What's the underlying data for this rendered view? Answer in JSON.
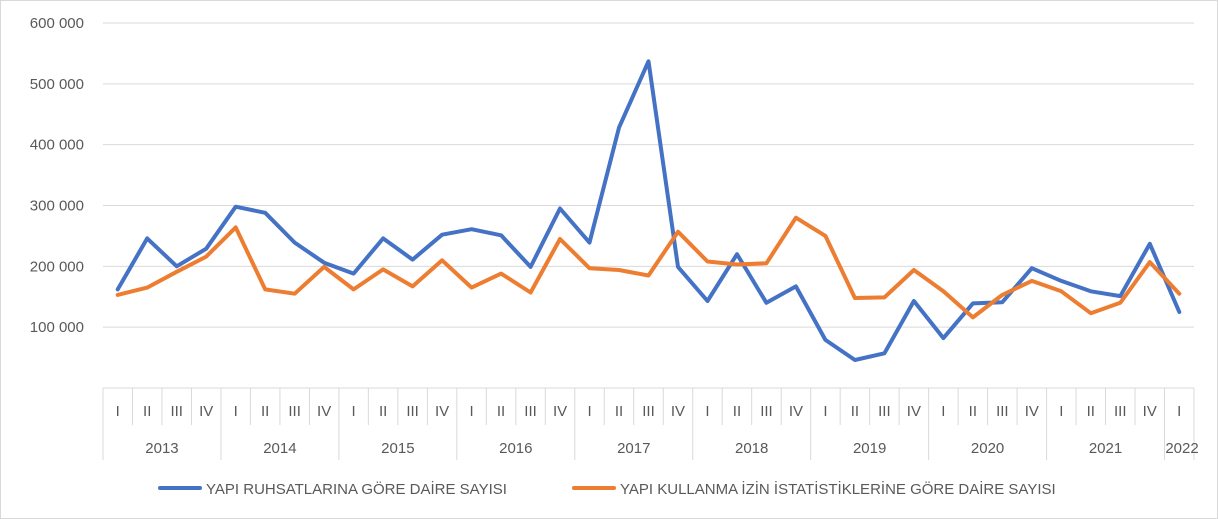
{
  "chart_data": {
    "type": "line",
    "title": "",
    "xlabel": "",
    "ylabel": "",
    "ylim": [
      0,
      600000
    ],
    "y_ticks": [
      100000,
      200000,
      300000,
      400000,
      500000,
      600000
    ],
    "y_tick_labels": [
      "100 000",
      "200 000",
      "300 000",
      "400 000",
      "500 000",
      "600 000"
    ],
    "grid": true,
    "legend_position": "bottom",
    "years": [
      {
        "label": "2013",
        "quarters": [
          "I",
          "II",
          "III",
          "IV"
        ]
      },
      {
        "label": "2014",
        "quarters": [
          "I",
          "II",
          "III",
          "IV"
        ]
      },
      {
        "label": "2015",
        "quarters": [
          "I",
          "II",
          "III",
          "IV"
        ]
      },
      {
        "label": "2016",
        "quarters": [
          "I",
          "II",
          "III",
          "IV"
        ]
      },
      {
        "label": "2017",
        "quarters": [
          "I",
          "II",
          "III",
          "IV"
        ]
      },
      {
        "label": "2018",
        "quarters": [
          "I",
          "II",
          "III",
          "IV"
        ]
      },
      {
        "label": "2019",
        "quarters": [
          "I",
          "II",
          "III",
          "IV"
        ]
      },
      {
        "label": "2020",
        "quarters": [
          "I",
          "II",
          "III",
          "IV"
        ]
      },
      {
        "label": "2021",
        "quarters": [
          "I",
          "II",
          "III",
          "IV"
        ]
      },
      {
        "label": "2022",
        "quarters": [
          "I"
        ]
      }
    ],
    "series": [
      {
        "name": "YAPI RUHSATLARINA GÖRE DAİRE SAYISI",
        "color": "#4472c4",
        "values": [
          162000,
          246000,
          200000,
          229000,
          298000,
          288000,
          239000,
          206000,
          188000,
          246000,
          211000,
          252000,
          261000,
          251000,
          199000,
          295000,
          239000,
          428000,
          537000,
          199000,
          143000,
          220000,
          140000,
          167000,
          79000,
          46000,
          57000,
          143000,
          82000,
          139000,
          141000,
          197000,
          176000,
          159000,
          151000,
          237000,
          125000
        ]
      },
      {
        "name": "YAPI KULLANMA İZİN İSTATİSTİKLERİNE GÖRE DAİRE SAYISI",
        "color": "#ed7d31",
        "values": [
          153000,
          165000,
          191000,
          216000,
          264000,
          162000,
          155000,
          199000,
          162000,
          195000,
          167000,
          210000,
          165000,
          188000,
          157000,
          245000,
          197000,
          194000,
          185000,
          257000,
          208000,
          203000,
          205000,
          280000,
          250000,
          148000,
          149000,
          194000,
          159000,
          116000,
          153000,
          176000,
          159000,
          123000,
          140000,
          207000,
          155000
        ]
      }
    ]
  }
}
